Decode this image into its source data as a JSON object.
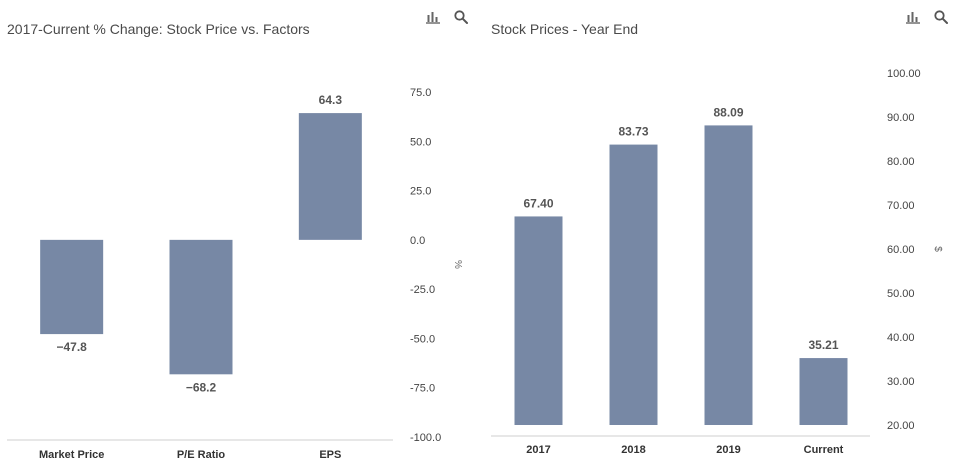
{
  "chart_data": [
    {
      "type": "bar",
      "title": "2017-Current % Change: Stock Price vs. Factors",
      "categories": [
        "Market Price",
        "P/E Ratio",
        "EPS"
      ],
      "values": [
        -47.8,
        -68.2,
        64.3
      ],
      "data_labels": [
        "−47.8",
        "−68.2",
        "64.3"
      ],
      "y_ticks": [
        "75.0",
        "50.0",
        "25.0",
        "0.0",
        "-25.0",
        "-50.0",
        "-75.0",
        "-100.0"
      ],
      "y_tick_values": [
        75,
        50,
        25,
        0,
        -25,
        -50,
        -75,
        -100
      ],
      "ylim": [
        -100,
        75
      ],
      "y_unit": "%",
      "y_axis_side": "right",
      "grid": false,
      "bar_color": "#7788a5"
    },
    {
      "type": "bar",
      "title": "Stock Prices - Year End",
      "categories": [
        "2017",
        "2018",
        "2019",
        "Current"
      ],
      "values": [
        67.4,
        83.73,
        88.09,
        35.21
      ],
      "data_labels": [
        "67.40",
        "83.73",
        "88.09",
        "35.21"
      ],
      "y_ticks": [
        "100.00",
        "90.00",
        "80.00",
        "70.00",
        "60.00",
        "50.00",
        "40.00",
        "30.00",
        "20.00"
      ],
      "y_tick_values": [
        100,
        90,
        80,
        70,
        60,
        50,
        40,
        30,
        20
      ],
      "ylim": [
        20,
        100
      ],
      "y_unit": "$",
      "y_axis_side": "right",
      "grid": false,
      "bar_color": "#7788a5"
    }
  ],
  "toolbar": {
    "chart_icon": "bar-chart-icon",
    "search_icon": "search-icon"
  }
}
